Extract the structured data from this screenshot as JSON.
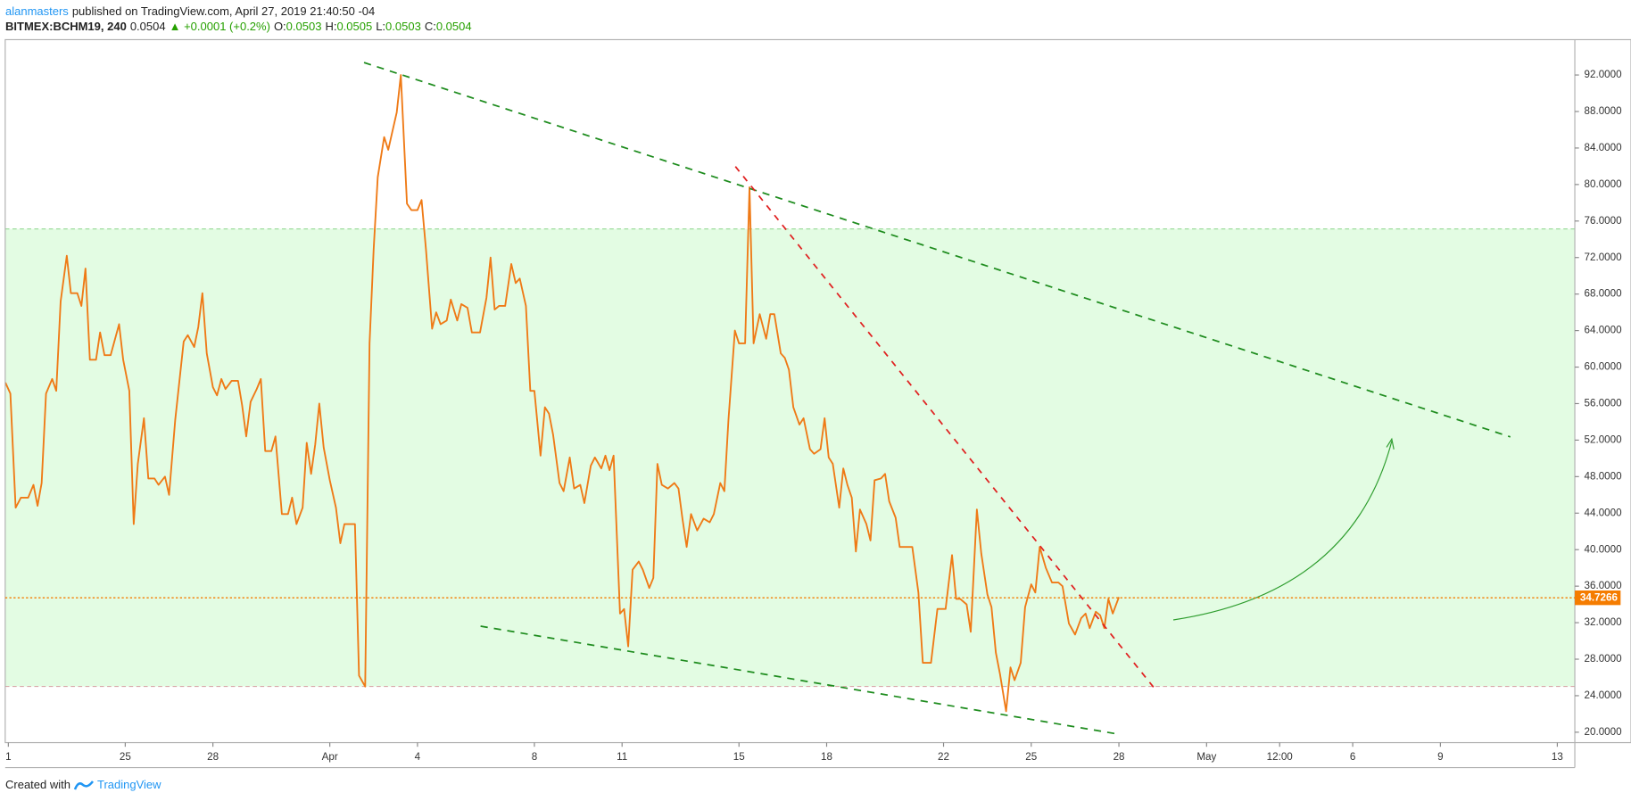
{
  "header": {
    "author": "alanmasters",
    "published": "published on TradingView.com, April 27, 2019 21:40:50 -04"
  },
  "chart_data": {
    "type": "line",
    "symbol": "BITMEX:BCHM19, 240",
    "last": "0.0504",
    "change": "+0.0001 (+0.2%)",
    "ohlc": [
      {
        "label": "O:",
        "value": "0.0503"
      },
      {
        "label": "H:",
        "value": "0.0505"
      },
      {
        "label": "L:",
        "value": "0.0503"
      },
      {
        "label": "C:",
        "value": "0.0504"
      }
    ],
    "x": [
      -0.1,
      0.07,
      0.25,
      0.43,
      0.68,
      0.86,
      1.0,
      1.14,
      1.29,
      1.5,
      1.64,
      1.79,
      2.0,
      2.14,
      2.36,
      2.5,
      2.64,
      2.79,
      3.0,
      3.14,
      3.29,
      3.5,
      3.79,
      3.93,
      4.14,
      4.29,
      4.43,
      4.64,
      4.79,
      5.0,
      5.14,
      5.36,
      5.5,
      5.71,
      6.0,
      6.14,
      6.36,
      6.5,
      6.64,
      6.79,
      7.0,
      7.14,
      7.29,
      7.43,
      7.64,
      7.86,
      8.0,
      8.14,
      8.29,
      8.5,
      8.64,
      8.79,
      9.0,
      9.14,
      9.36,
      9.57,
      9.71,
      9.86,
      10.07,
      10.21,
      10.36,
      10.5,
      10.64,
      10.79,
      11.0,
      11.21,
      11.36,
      11.5,
      11.71,
      11.86,
      12.0,
      12.21,
      12.36,
      12.5,
      12.64,
      12.86,
      13.0,
      13.14,
      13.29,
      13.43,
      13.64,
      13.79,
      14.0,
      14.14,
      14.29,
      14.5,
      14.64,
      14.79,
      15.0,
      15.14,
      15.36,
      15.5,
      15.71,
      15.86,
      16.14,
      16.36,
      16.5,
      16.64,
      16.79,
      17.0,
      17.21,
      17.36,
      17.5,
      17.71,
      17.86,
      18.0,
      18.21,
      18.36,
      18.5,
      18.64,
      18.86,
      19.0,
      19.21,
      19.36,
      19.57,
      19.71,
      19.93,
      20.07,
      20.29,
      20.43,
      20.57,
      20.71,
      20.93,
      21.07,
      21.21,
      21.36,
      21.57,
      21.71,
      21.93,
      22.07,
      22.21,
      22.36,
      22.57,
      22.79,
      22.93,
      23.07,
      23.21,
      23.36,
      23.57,
      23.79,
      24.0,
      24.14,
      24.36,
      24.5,
      24.64,
      24.86,
      25.0,
      25.21,
      25.36,
      25.5,
      25.71,
      25.93,
      26.07,
      26.21,
      26.43,
      26.57,
      26.71,
      26.86,
      27.07,
      27.21,
      27.43,
      27.57,
      27.79,
      27.93,
      28.07,
      28.21,
      28.43,
      28.57,
      28.71,
      28.86,
      29.0,
      29.14,
      29.36,
      29.5,
      29.64,
      29.86,
      30.0,
      30.14,
      30.36,
      30.5,
      30.64,
      30.93,
      31.14,
      31.29,
      31.57,
      31.79,
      32.07,
      32.29,
      32.43,
      32.57,
      32.79,
      32.93,
      33.14,
      33.29,
      33.5,
      33.64,
      33.79,
      33.93,
      34.14,
      34.29,
      34.43,
      34.64,
      34.79,
      35.0,
      35.14,
      35.29,
      35.5,
      35.71,
      35.93,
      36.07,
      36.29,
      36.5,
      36.71,
      36.86,
      37.0,
      37.21,
      37.36,
      37.5,
      37.64,
      37.79,
      38.0
    ],
    "series": [
      {
        "color": "#ef7a16",
        "values": [
          58.3,
          57.1,
          44.6,
          45.7,
          45.7,
          47.1,
          44.8,
          47.3,
          57.1,
          58.7,
          57.4,
          67.2,
          72.2,
          68.1,
          68.1,
          66.7,
          70.8,
          60.8,
          60.8,
          63.8,
          61.3,
          61.3,
          64.7,
          60.8,
          57.4,
          42.8,
          49.4,
          54.4,
          47.8,
          47.8,
          47.1,
          48.0,
          46.0,
          54.2,
          62.8,
          63.5,
          62.2,
          64.4,
          68.1,
          61.5,
          57.8,
          56.9,
          58.7,
          57.6,
          58.5,
          58.5,
          55.8,
          52.4,
          56.2,
          57.6,
          58.7,
          50.8,
          50.8,
          52.4,
          43.9,
          43.9,
          45.7,
          42.8,
          44.6,
          51.7,
          48.3,
          51.5,
          56.0,
          51.2,
          47.6,
          44.6,
          40.7,
          42.8,
          42.8,
          42.8,
          26.2,
          25.0,
          62.6,
          72.9,
          80.8,
          85.2,
          83.8,
          85.8,
          87.9,
          92.0,
          77.9,
          77.2,
          77.2,
          78.3,
          72.9,
          64.2,
          66.0,
          64.7,
          65.1,
          67.4,
          65.1,
          66.9,
          66.5,
          63.8,
          63.8,
          67.6,
          72.0,
          66.3,
          66.7,
          66.7,
          71.3,
          69.2,
          69.7,
          66.7,
          57.4,
          57.4,
          50.3,
          55.6,
          54.9,
          52.6,
          47.3,
          46.4,
          50.1,
          46.7,
          47.1,
          45.1,
          49.2,
          50.1,
          48.9,
          50.3,
          48.7,
          50.3,
          33.0,
          33.5,
          29.4,
          37.8,
          38.7,
          37.8,
          35.8,
          36.9,
          49.4,
          47.1,
          46.7,
          47.3,
          46.7,
          43.3,
          40.3,
          43.9,
          42.1,
          43.4,
          43.0,
          43.9,
          47.3,
          46.4,
          54.2,
          64.0,
          62.6,
          62.6,
          79.7,
          62.6,
          65.8,
          63.1,
          65.8,
          65.8,
          61.5,
          61.0,
          59.7,
          55.6,
          53.7,
          54.4,
          51.0,
          50.5,
          51.0,
          54.4,
          50.1,
          49.4,
          44.6,
          48.9,
          47.1,
          45.7,
          39.8,
          44.4,
          42.8,
          41.0,
          47.6,
          47.8,
          48.3,
          45.3,
          43.5,
          40.3,
          40.3,
          40.3,
          35.3,
          27.6,
          27.6,
          33.5,
          33.5,
          39.4,
          34.6,
          34.6,
          34.0,
          31.0,
          44.4,
          39.6,
          35.1,
          33.7,
          28.7,
          26.4,
          22.3,
          27.1,
          25.7,
          27.6,
          33.7,
          36.2,
          35.3,
          40.3,
          38.0,
          36.4,
          36.4,
          36.0,
          31.9,
          30.7,
          32.5,
          33.0,
          31.4,
          33.2,
          32.8,
          31.4,
          34.6,
          33.0,
          34.8
        ]
      }
    ],
    "xlim": [
      -0.107,
      53.6
    ],
    "xticks": [
      {
        "value": 0,
        "label": "1"
      },
      {
        "value": 4,
        "label": "25"
      },
      {
        "value": 7,
        "label": "28"
      },
      {
        "value": 11,
        "label": "Apr"
      },
      {
        "value": 14,
        "label": "4"
      },
      {
        "value": 18,
        "label": "8"
      },
      {
        "value": 21,
        "label": "11"
      },
      {
        "value": 25,
        "label": "15"
      },
      {
        "value": 28,
        "label": "18"
      },
      {
        "value": 32,
        "label": "22"
      },
      {
        "value": 35,
        "label": "25"
      },
      {
        "value": 38,
        "label": "28"
      },
      {
        "value": 41,
        "label": "May"
      },
      {
        "value": 43.5,
        "label": "12:00"
      },
      {
        "value": 46,
        "label": "6"
      },
      {
        "value": 49,
        "label": "9"
      },
      {
        "value": 53,
        "label": "13"
      }
    ],
    "ylim": [
      18.86,
      95.87
    ],
    "yticks": [
      {
        "value": 20,
        "label": "20.0000"
      },
      {
        "value": 24,
        "label": "24.0000"
      },
      {
        "value": 28,
        "label": "28.0000"
      },
      {
        "value": 32,
        "label": "32.0000"
      },
      {
        "value": 36,
        "label": "36.0000"
      },
      {
        "value": 40,
        "label": "40.0000"
      },
      {
        "value": 44,
        "label": "44.0000"
      },
      {
        "value": 48,
        "label": "48.0000"
      },
      {
        "value": 52,
        "label": "52.0000"
      },
      {
        "value": 56,
        "label": "56.0000"
      },
      {
        "value": 60,
        "label": "60.0000"
      },
      {
        "value": 64,
        "label": "64.0000"
      },
      {
        "value": 68,
        "label": "68.0000"
      },
      {
        "value": 72,
        "label": "72.0000"
      },
      {
        "value": 76,
        "label": "76.0000"
      },
      {
        "value": 80,
        "label": "80.0000"
      },
      {
        "value": 84,
        "label": "84.0000"
      },
      {
        "value": 88,
        "label": "88.0000"
      },
      {
        "value": 92,
        "label": "92.0000"
      }
    ],
    "last_price": {
      "value": 34.7266,
      "label": "34.7266",
      "color": "#f57c00"
    }
  },
  "footer": {
    "text": "Created with",
    "brand": "TradingView"
  }
}
